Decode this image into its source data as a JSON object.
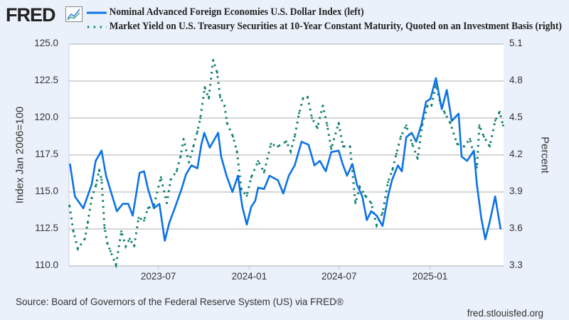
{
  "logo": {
    "text": "FRED"
  },
  "colors": {
    "series1": "#0c72e6",
    "series2": "#0e7f6c",
    "grid": "#c8c8c8",
    "background": "#eaf1fa"
  },
  "footer": {
    "source": "Source: Board of Governors of the Federal Reserve System (US) via FRED®",
    "site": "fred.stlouisfed.org"
  },
  "chart_data": {
    "type": "line",
    "grid": true,
    "legend_placement": "top",
    "xlim": [
      "2023-01-01",
      "2025-05-30"
    ],
    "x_ticks": [
      "2023-07",
      "2024-01",
      "2024-07",
      "2025-01"
    ],
    "ylabel_left": "Index Jan 2006=100",
    "ylabel_right": "Percent",
    "ylim_left": [
      110.0,
      125.0
    ],
    "ylim_right": [
      3.3,
      5.1
    ],
    "y_ticks_left": [
      "110.0",
      "112.5",
      "115.0",
      "117.5",
      "120.0",
      "122.5",
      "125.0"
    ],
    "y_ticks_right": [
      "3.3",
      "3.6",
      "3.9",
      "4.2",
      "4.5",
      "4.8",
      "5.1"
    ],
    "series": [
      {
        "name": "Nominal Advanced Foreign Economies U.S. Dollar Index (left)",
        "axis": "left",
        "style": "solid",
        "points": [
          [
            "2023-01-03",
            116.9
          ],
          [
            "2023-01-13",
            114.7
          ],
          [
            "2023-01-30",
            113.9
          ],
          [
            "2023-02-16",
            115.5
          ],
          [
            "2023-02-24",
            117.1
          ],
          [
            "2023-03-08",
            117.8
          ],
          [
            "2023-03-17",
            116.1
          ],
          [
            "2023-03-28",
            114.9
          ],
          [
            "2023-04-08",
            113.7
          ],
          [
            "2023-04-20",
            114.2
          ],
          [
            "2023-05-01",
            114.2
          ],
          [
            "2023-05-10",
            113.4
          ],
          [
            "2023-05-24",
            116.3
          ],
          [
            "2023-06-02",
            116.4
          ],
          [
            "2023-06-10",
            115.2
          ],
          [
            "2023-06-22",
            113.9
          ],
          [
            "2023-07-03",
            114.2
          ],
          [
            "2023-07-14",
            111.7
          ],
          [
            "2023-07-23",
            112.9
          ],
          [
            "2023-08-03",
            113.9
          ],
          [
            "2023-08-17",
            115.2
          ],
          [
            "2023-08-26",
            116.2
          ],
          [
            "2023-09-06",
            116.8
          ],
          [
            "2023-09-18",
            116.6
          ],
          [
            "2023-09-26",
            118.2
          ],
          [
            "2023-10-02",
            119.0
          ],
          [
            "2023-10-13",
            118.0
          ],
          [
            "2023-10-30",
            119.0
          ],
          [
            "2023-11-05",
            117.4
          ],
          [
            "2023-11-16",
            116.1
          ],
          [
            "2023-11-28",
            115.0
          ],
          [
            "2023-12-09",
            116.1
          ],
          [
            "2023-12-18",
            114.0
          ],
          [
            "2023-12-27",
            112.8
          ],
          [
            "2024-01-05",
            114.0
          ],
          [
            "2024-01-13",
            114.4
          ],
          [
            "2024-01-19",
            115.3
          ],
          [
            "2024-01-31",
            115.2
          ],
          [
            "2024-02-11",
            116.1
          ],
          [
            "2024-02-28",
            115.8
          ],
          [
            "2024-03-10",
            114.9
          ],
          [
            "2024-03-21",
            116.1
          ],
          [
            "2024-04-02",
            116.8
          ],
          [
            "2024-04-16",
            118.4
          ],
          [
            "2024-04-30",
            118.2
          ],
          [
            "2024-05-12",
            116.8
          ],
          [
            "2024-05-23",
            117.1
          ],
          [
            "2024-06-04",
            116.4
          ],
          [
            "2024-06-15",
            117.7
          ],
          [
            "2024-06-30",
            117.8
          ],
          [
            "2024-07-08",
            116.9
          ],
          [
            "2024-07-17",
            116.1
          ],
          [
            "2024-07-28",
            116.9
          ],
          [
            "2024-08-06",
            115.5
          ],
          [
            "2024-08-17",
            114.7
          ],
          [
            "2024-08-26",
            113.1
          ],
          [
            "2024-09-04",
            113.7
          ],
          [
            "2024-09-15",
            113.4
          ],
          [
            "2024-09-27",
            112.7
          ],
          [
            "2024-10-08",
            114.7
          ],
          [
            "2024-10-16",
            115.8
          ],
          [
            "2024-10-28",
            116.8
          ],
          [
            "2024-11-05",
            116.4
          ],
          [
            "2024-11-14",
            118.7
          ],
          [
            "2024-11-25",
            119.0
          ],
          [
            "2024-12-04",
            118.4
          ],
          [
            "2024-12-15",
            119.6
          ],
          [
            "2024-12-24",
            121.1
          ],
          [
            "2025-01-02",
            121.3
          ],
          [
            "2025-01-13",
            122.7
          ],
          [
            "2025-01-25",
            120.6
          ],
          [
            "2025-02-04",
            121.9
          ],
          [
            "2025-02-14",
            119.8
          ],
          [
            "2025-02-28",
            120.3
          ],
          [
            "2025-03-06",
            117.4
          ],
          [
            "2025-03-17",
            117.1
          ],
          [
            "2025-03-31",
            117.8
          ],
          [
            "2025-04-06",
            115.5
          ],
          [
            "2025-04-15",
            113.2
          ],
          [
            "2025-04-23",
            111.8
          ],
          [
            "2025-05-02",
            113.0
          ],
          [
            "2025-05-13",
            114.7
          ],
          [
            "2025-05-24",
            112.5
          ]
        ]
      },
      {
        "name": "Market Yield on U.S. Treasury Securities at 10-Year Constant Maturity, Quoted on an Investment Basis (right)",
        "axis": "right",
        "style": "dotted",
        "points": [
          [
            "2023-01-02",
            3.79
          ],
          [
            "2023-01-10",
            3.58
          ],
          [
            "2023-01-19",
            3.44
          ],
          [
            "2023-02-02",
            3.52
          ],
          [
            "2023-02-08",
            3.65
          ],
          [
            "2023-02-16",
            3.85
          ],
          [
            "2023-02-25",
            3.96
          ],
          [
            "2023-03-03",
            4.08
          ],
          [
            "2023-03-08",
            4.0
          ],
          [
            "2023-03-14",
            3.61
          ],
          [
            "2023-03-20",
            3.48
          ],
          [
            "2023-03-26",
            3.42
          ],
          [
            "2023-04-06",
            3.31
          ],
          [
            "2023-04-17",
            3.58
          ],
          [
            "2023-04-26",
            3.46
          ],
          [
            "2023-05-04",
            3.52
          ],
          [
            "2023-05-13",
            3.46
          ],
          [
            "2023-05-22",
            3.69
          ],
          [
            "2023-06-02",
            3.67
          ],
          [
            "2023-06-10",
            3.77
          ],
          [
            "2023-06-22",
            3.79
          ],
          [
            "2023-07-06",
            4.02
          ],
          [
            "2023-07-18",
            3.81
          ],
          [
            "2023-07-26",
            4.0
          ],
          [
            "2023-08-07",
            4.07
          ],
          [
            "2023-08-15",
            4.19
          ],
          [
            "2023-08-21",
            4.33
          ],
          [
            "2023-09-01",
            4.14
          ],
          [
            "2023-09-10",
            4.27
          ],
          [
            "2023-09-18",
            4.39
          ],
          [
            "2023-09-24",
            4.5
          ],
          [
            "2023-10-03",
            4.75
          ],
          [
            "2023-10-11",
            4.66
          ],
          [
            "2023-10-20",
            4.97
          ],
          [
            "2023-10-28",
            4.87
          ],
          [
            "2023-11-03",
            4.67
          ],
          [
            "2023-11-12",
            4.6
          ],
          [
            "2023-11-17",
            4.46
          ],
          [
            "2023-11-29",
            4.35
          ],
          [
            "2023-12-07",
            4.23
          ],
          [
            "2023-12-16",
            3.92
          ],
          [
            "2023-12-27",
            3.87
          ],
          [
            "2024-01-05",
            4.02
          ],
          [
            "2024-01-19",
            4.15
          ],
          [
            "2024-01-31",
            4.06
          ],
          [
            "2024-02-14",
            4.29
          ],
          [
            "2024-02-28",
            4.27
          ],
          [
            "2024-03-16",
            4.31
          ],
          [
            "2024-03-25",
            4.23
          ],
          [
            "2024-04-02",
            4.35
          ],
          [
            "2024-04-11",
            4.54
          ],
          [
            "2024-04-19",
            4.66
          ],
          [
            "2024-04-28",
            4.67
          ],
          [
            "2024-05-07",
            4.5
          ],
          [
            "2024-05-18",
            4.42
          ],
          [
            "2024-05-29",
            4.6
          ],
          [
            "2024-06-07",
            4.44
          ],
          [
            "2024-06-15",
            4.25
          ],
          [
            "2024-06-30",
            4.46
          ],
          [
            "2024-07-09",
            4.27
          ],
          [
            "2024-07-23",
            4.27
          ],
          [
            "2024-08-03",
            3.81
          ],
          [
            "2024-08-12",
            3.94
          ],
          [
            "2024-08-23",
            3.87
          ],
          [
            "2024-09-04",
            3.81
          ],
          [
            "2024-09-15",
            3.63
          ],
          [
            "2024-09-27",
            3.73
          ],
          [
            "2024-10-08",
            3.98
          ],
          [
            "2024-10-17",
            4.08
          ],
          [
            "2024-10-25",
            4.21
          ],
          [
            "2024-11-03",
            4.35
          ],
          [
            "2024-11-14",
            4.44
          ],
          [
            "2024-11-26",
            4.29
          ],
          [
            "2024-12-07",
            4.17
          ],
          [
            "2024-12-16",
            4.44
          ],
          [
            "2024-12-27",
            4.6
          ],
          [
            "2025-01-04",
            4.6
          ],
          [
            "2025-01-13",
            4.77
          ],
          [
            "2025-01-22",
            4.62
          ],
          [
            "2025-01-31",
            4.54
          ],
          [
            "2025-02-11",
            4.46
          ],
          [
            "2025-02-25",
            4.29
          ],
          [
            "2025-03-11",
            4.27
          ],
          [
            "2025-03-23",
            4.33
          ],
          [
            "2025-04-06",
            4.1
          ],
          [
            "2025-04-11",
            4.44
          ],
          [
            "2025-04-20",
            4.35
          ],
          [
            "2025-05-02",
            4.27
          ],
          [
            "2025-05-13",
            4.48
          ],
          [
            "2025-05-22",
            4.55
          ],
          [
            "2025-05-29",
            4.44
          ]
        ]
      }
    ]
  }
}
